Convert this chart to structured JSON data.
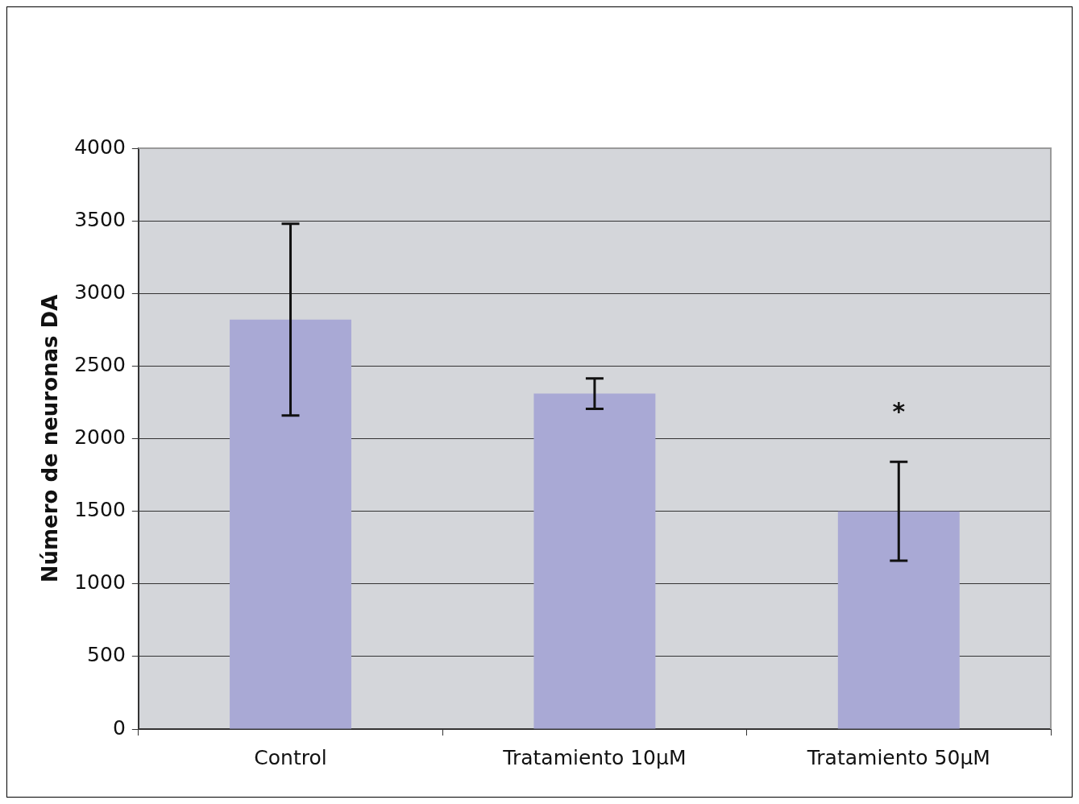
{
  "chart_data": {
    "type": "bar",
    "ylabel": "Número de neuronas DA",
    "categories": [
      "Control",
      "Tratamiento 10µM",
      "Tratamiento 50µM"
    ],
    "values": [
      2820,
      2310,
      1500
    ],
    "errors": [
      660,
      105,
      340
    ],
    "color": "#a9a9d5",
    "ylim": [
      0,
      4000
    ],
    "yticks": [
      0,
      500,
      1000,
      1500,
      2000,
      2500,
      3000,
      3500,
      4000
    ],
    "grid": "y",
    "annotations": [
      "*"
    ]
  }
}
